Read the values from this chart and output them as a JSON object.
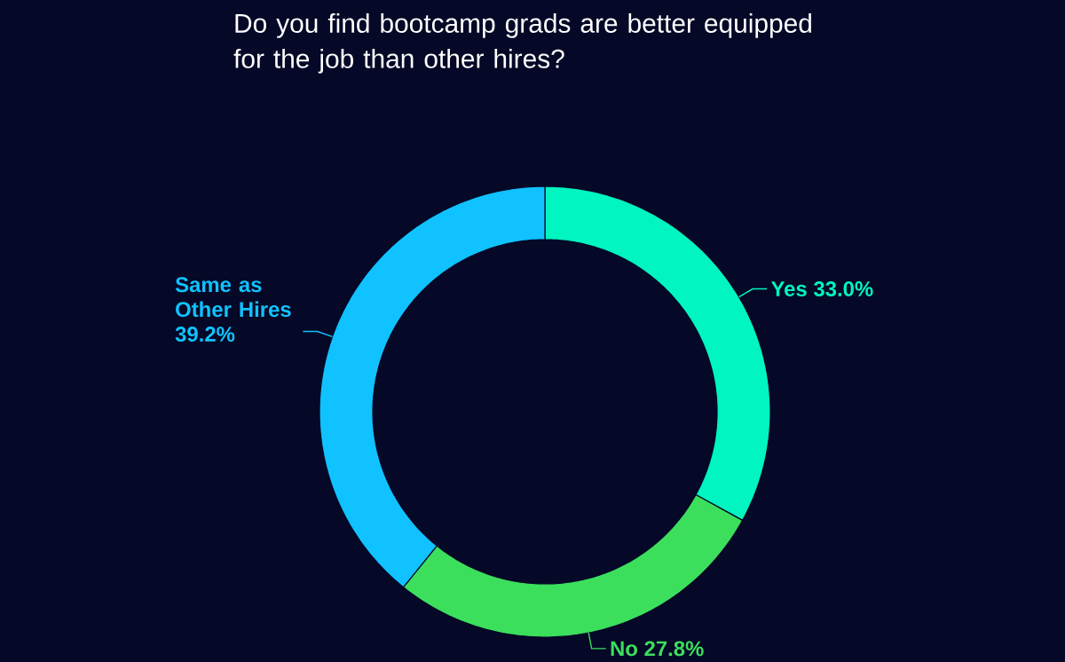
{
  "chart_data": {
    "type": "donut",
    "title": "Do you find bootcamp grads are better equipped for the job than other hires?",
    "categories": [
      "Yes",
      "No",
      "Same as Other Hires"
    ],
    "values": [
      33.0,
      27.8,
      39.2
    ],
    "colors": [
      "#00f5c0",
      "#3bdf5c",
      "#10c2ff"
    ],
    "value_labels": [
      "33.0%",
      "27.8%",
      "39.2%"
    ]
  }
}
